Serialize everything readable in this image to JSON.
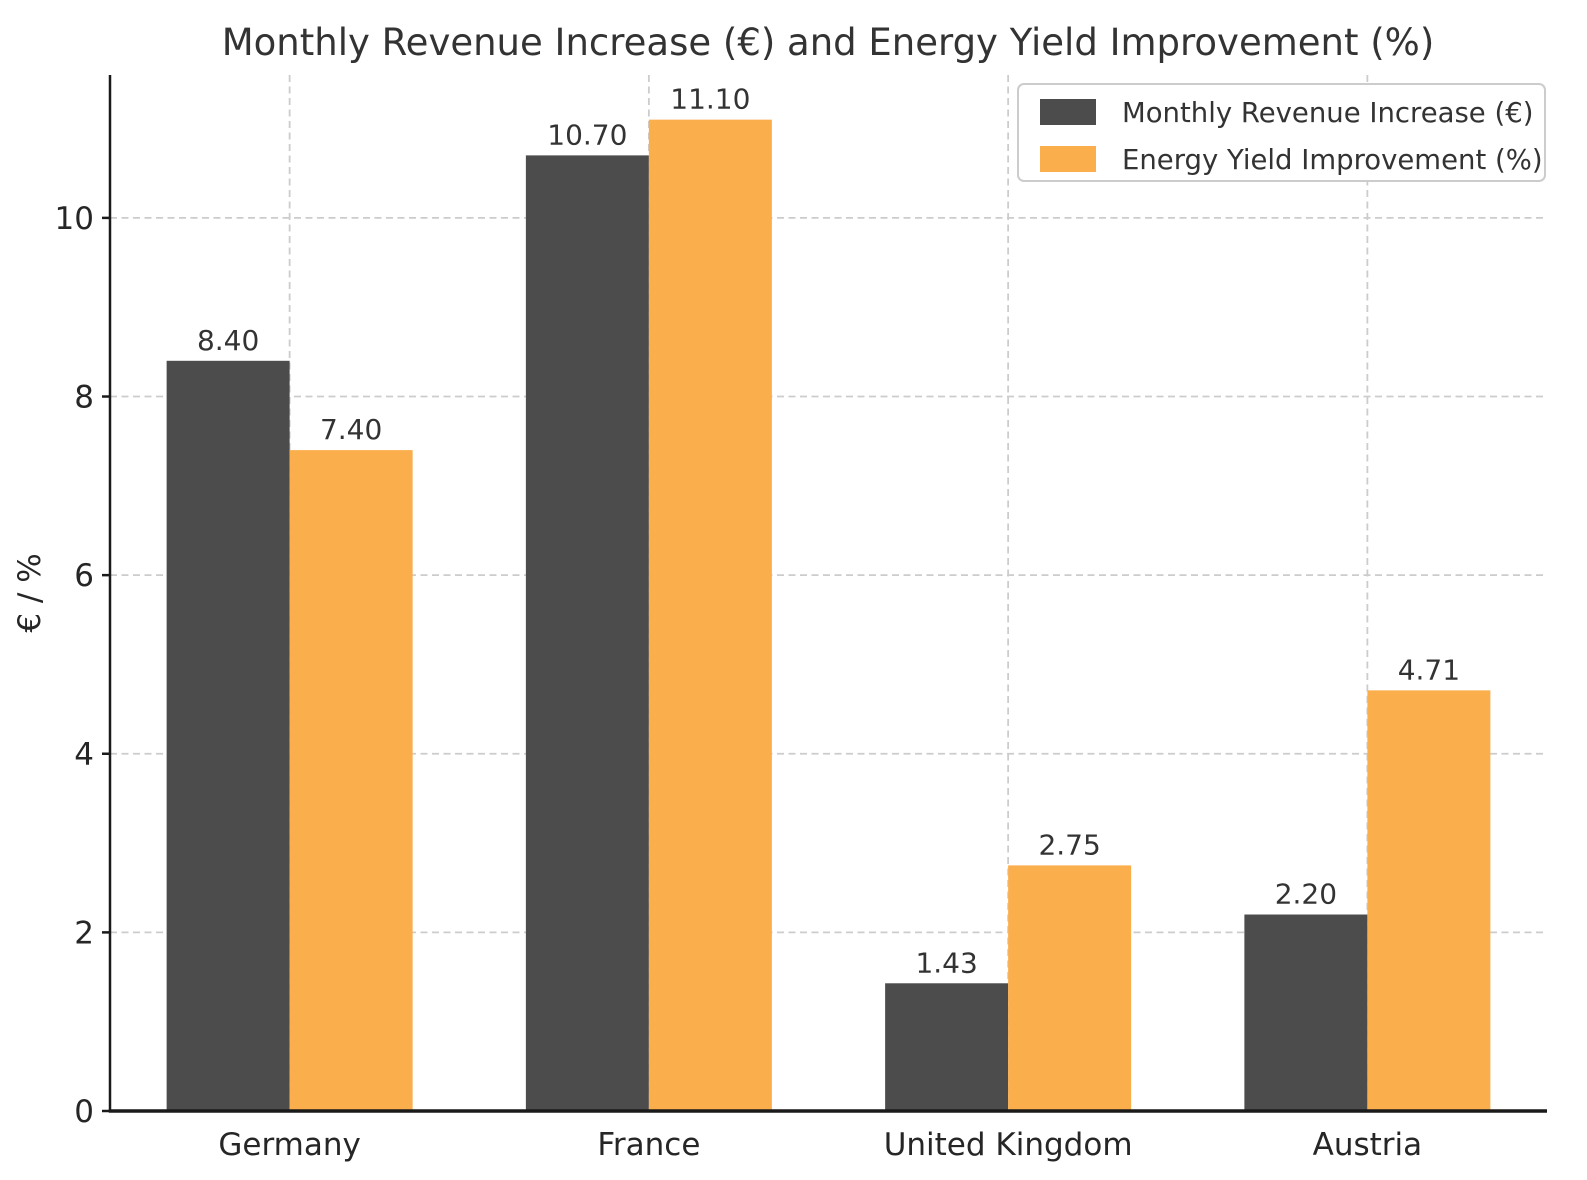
{
  "page": {
    "background": "#ffffff"
  },
  "chart_data": {
    "type": "bar",
    "title": "Monthly Revenue Increase (€) and Energy Yield Improvement (%)",
    "xlabel": "",
    "ylabel": "€ / %",
    "categories": [
      "Germany",
      "France",
      "United Kingdom",
      "Austria"
    ],
    "series": [
      {
        "name": "Monthly Revenue Increase (€)",
        "color": "#4C4C4C",
        "values": [
          8.4,
          10.7,
          1.43,
          2.2
        ]
      },
      {
        "name": "Energy Yield Improvement (%)",
        "color": "#FBAE4C",
        "values": [
          7.4,
          11.1,
          2.75,
          4.71
        ]
      }
    ],
    "bar_value_labels": [
      [
        "8.40",
        "10.70",
        "1.43",
        "2.20"
      ],
      [
        "7.40",
        "11.10",
        "2.75",
        "4.71"
      ]
    ],
    "yticks": [
      0,
      2,
      4,
      6,
      8,
      10
    ],
    "ylim": [
      0,
      11.6
    ],
    "grid": true,
    "grid_style": "dashed",
    "legend_position": "upper right",
    "colors": {
      "grid": "#cccccc",
      "spine": "#1a1a1a",
      "title_text": "#333333",
      "tick_text": "#262626",
      "value_text": "#333333",
      "legend_border": "#cccccc",
      "legend_background": "#ffffff"
    }
  }
}
